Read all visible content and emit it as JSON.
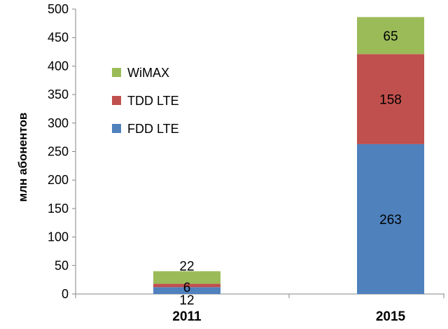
{
  "chart_data": {
    "type": "bar",
    "stacked": true,
    "categories": [
      "2011",
      "2015"
    ],
    "series": [
      {
        "name": "FDD LTE",
        "color": "#4f81bd",
        "values": [
          12,
          263
        ]
      },
      {
        "name": "TDD LTE",
        "color": "#c0504d",
        "values": [
          6,
          158
        ]
      },
      {
        "name": "WiMAX",
        "color": "#9bbb59",
        "values": [
          22,
          65
        ]
      }
    ],
    "title": "",
    "xlabel": "",
    "ylabel": "млн абонентов",
    "ylim": [
      0,
      500
    ],
    "yticks": [
      0,
      50,
      100,
      150,
      200,
      250,
      300,
      350,
      400,
      450,
      500
    ],
    "grid": false,
    "legend": {
      "position": "left-center",
      "order": [
        "WiMAX",
        "TDD LTE",
        "FDD LTE"
      ]
    },
    "data_labels": true
  }
}
